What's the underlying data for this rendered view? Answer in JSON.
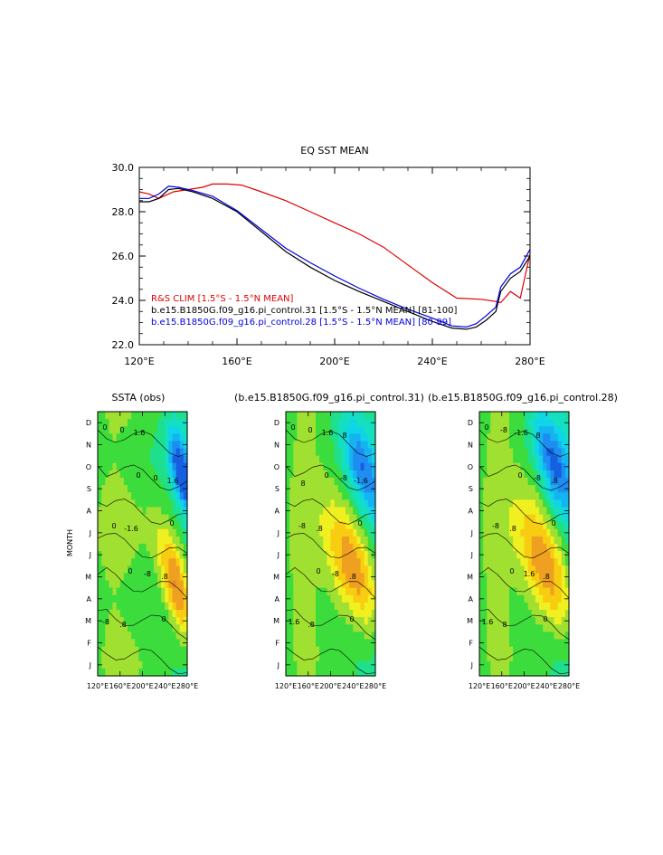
{
  "chart_data": [
    {
      "type": "line",
      "title": "EQ SST MEAN",
      "xlim": [
        120,
        280
      ],
      "ylim": [
        22,
        30
      ],
      "x_ticks": [
        "120°E",
        "160°E",
        "200°E",
        "240°E",
        "280°E"
      ],
      "y_ticks": [
        "22.0",
        "24.0",
        "26.0",
        "28.0",
        "30.0"
      ],
      "legend_position": "bottom-left",
      "colors": {
        "obs": "#e00000",
        "run31": "#000000",
        "run28": "#0000e0"
      },
      "series": [
        {
          "name": "R&S CLIM [1.5°S - 1.5°N MEAN]",
          "x": [
            120,
            124,
            128,
            134,
            140,
            146,
            150,
            156,
            162,
            170,
            180,
            190,
            200,
            210,
            220,
            230,
            240,
            250,
            260,
            266,
            268,
            272,
            276,
            280
          ],
          "y": [
            28.9,
            28.8,
            28.6,
            28.9,
            29.0,
            29.1,
            29.25,
            29.25,
            29.2,
            28.9,
            28.5,
            28.0,
            27.5,
            27.0,
            26.4,
            25.6,
            24.8,
            24.1,
            24.05,
            23.95,
            23.9,
            24.4,
            24.1,
            26.1
          ]
        },
        {
          "name": "b.e15.B1850G.f09_g16.pi_control.31 [1.5°S - 1.5°N MEAN] [81-100]",
          "x": [
            120,
            124,
            128,
            132,
            136,
            142,
            150,
            160,
            170,
            180,
            190,
            200,
            210,
            220,
            230,
            240,
            248,
            254,
            258,
            262,
            266,
            268,
            272,
            276,
            280
          ],
          "y": [
            28.45,
            28.45,
            28.6,
            29.0,
            29.05,
            28.9,
            28.6,
            28.0,
            27.1,
            26.2,
            25.5,
            24.9,
            24.4,
            23.95,
            23.5,
            23.05,
            22.75,
            22.7,
            22.8,
            23.1,
            23.5,
            24.4,
            25.0,
            25.3,
            26.0
          ]
        },
        {
          "name": "b.e15.B1850G.f09_g16.pi_control.28 [1.5°S - 1.5°N MEAN] [80-99]",
          "x": [
            120,
            124,
            128,
            132,
            136,
            142,
            150,
            160,
            170,
            180,
            190,
            200,
            210,
            220,
            230,
            240,
            248,
            254,
            258,
            262,
            266,
            268,
            272,
            276,
            280
          ],
          "y": [
            28.6,
            28.6,
            28.8,
            29.15,
            29.1,
            28.95,
            28.7,
            28.05,
            27.2,
            26.35,
            25.7,
            25.1,
            24.55,
            24.05,
            23.6,
            23.2,
            22.85,
            22.8,
            22.95,
            23.3,
            23.7,
            24.6,
            25.2,
            25.5,
            26.3
          ]
        }
      ]
    },
    {
      "type": "heatmap",
      "title": "SSTA (obs)",
      "ylabel": "MONTH",
      "xlim": [
        120,
        280
      ],
      "x_ticks": [
        "120°E",
        "160°E",
        "200°E",
        "240°E",
        "280°E"
      ],
      "y_ticks": [
        "J",
        "F",
        "M",
        "A",
        "M",
        "J",
        "J",
        "A",
        "S",
        "O",
        "N",
        "D"
      ],
      "warm_peak": {
        "lon": 262,
        "month": 3.5,
        "value": 2.4
      },
      "cold_peak": {
        "lon": 270,
        "month": 8.7,
        "value": -2.4
      },
      "contour_labels": [
        "0",
        "0",
        "0",
        "0",
        "0",
        "0",
        "0",
        "0",
        "-8",
        "-8",
        "1.6",
        "1.6",
        "-1.6",
        ".8",
        ".8"
      ]
    },
    {
      "type": "heatmap",
      "title": "(b.e15.B1850G.f09_g16.pi_control.31)",
      "xlim": [
        120,
        280
      ],
      "x_ticks": [
        "120°E",
        "160°E",
        "200°E",
        "240°E",
        "280°E"
      ],
      "warm_peak": {
        "lon": 245,
        "month": 4.2,
        "value": 2.0
      },
      "cold_peak": {
        "lon": 255,
        "month": 9.0,
        "value": -1.8
      },
      "contour_labels": [
        "0",
        "0",
        "0",
        "0",
        "0",
        "0",
        "-8",
        "-8",
        "-8",
        "1.6",
        "1.6",
        "-1.6",
        ".8",
        ".8",
        ".8",
        "8",
        "8"
      ]
    },
    {
      "type": "heatmap",
      "title": "(b.e15.B1850G.f09_g16.pi_control.28)",
      "xlim": [
        120,
        280
      ],
      "x_ticks": [
        "120°E",
        "160°E",
        "200°E",
        "240°E",
        "280°E"
      ],
      "warm_peak": {
        "lon": 242,
        "month": 4.3,
        "value": 2.0
      },
      "cold_peak": {
        "lon": 252,
        "month": 9.2,
        "value": -2.0
      },
      "contour_labels": [
        "0",
        "0",
        "0",
        "0",
        "0",
        "-8",
        "-8",
        "-8",
        "1.6",
        "1.6",
        "-1.6",
        ".8",
        ".8",
        ".8",
        "8",
        "8"
      ]
    }
  ],
  "palette": [
    "#1460e0",
    "#1e8cf0",
    "#14b4f0",
    "#10d4e8",
    "#14e0c0",
    "#1ee08c",
    "#3cdc3c",
    "#a0e030",
    "#f0f020",
    "#f8cc10",
    "#f0a020",
    "#e88828",
    "#e06828"
  ]
}
